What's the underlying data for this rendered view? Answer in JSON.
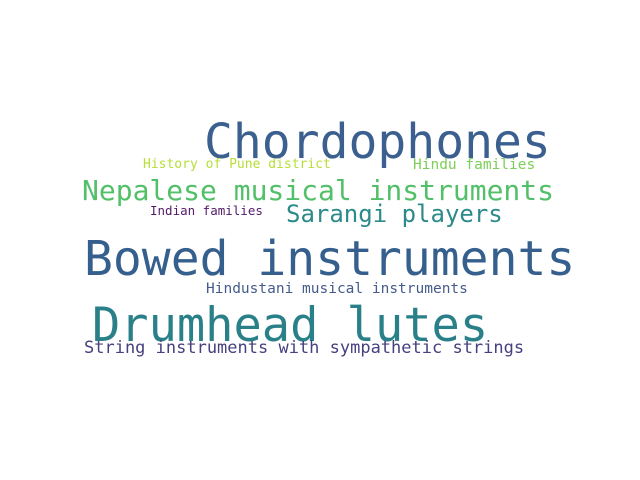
{
  "words": [
    {
      "text": "Chordophones",
      "color": "#3b5f8f"
    },
    {
      "text": "Bowed instruments",
      "color": "#355f8d"
    },
    {
      "text": "Drumhead lutes",
      "color": "#2a8088"
    },
    {
      "text": "Nepalese musical instruments",
      "color": "#52c068"
    },
    {
      "text": "Sarangi players",
      "color": "#2c8a8a"
    },
    {
      "text": "String instruments with sympathetic strings",
      "color": "#46407f"
    },
    {
      "text": "Hindustani musical instruments",
      "color": "#465b8c"
    },
    {
      "text": "Hindu families",
      "color": "#7ccf57"
    },
    {
      "text": "History of Pune district",
      "color": "#b8de38"
    },
    {
      "text": "Indian families",
      "color": "#521a68"
    }
  ]
}
